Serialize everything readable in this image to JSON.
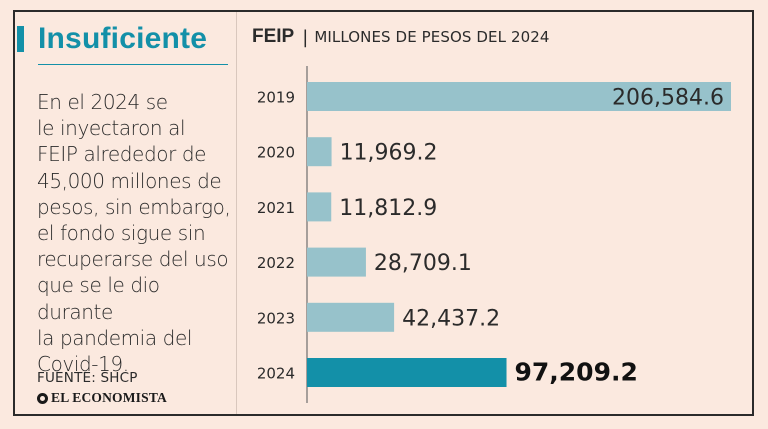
{
  "headline": "Insuficiente",
  "body_lines": [
    "En el 2024 se",
    "le inyectaron al",
    "FEIP alrededor de",
    "45,000 millones de",
    "pesos, sin embargo,",
    "el fondo sigue sin",
    "recuperarse del uso",
    "que se le dio durante",
    "la pandemia del",
    "Covid-19."
  ],
  "source": "FUENTE: SHCP",
  "brand": "EL ECONOMISTA",
  "colors": {
    "accent": "#1390a8",
    "bar": "#97c2cb",
    "text": "#2b2b2b",
    "background": "#fbe9df"
  },
  "chart_data": {
    "type": "bar",
    "orientation": "horizontal",
    "title": "FEIP",
    "subtitle": "MILLONES DE PESOS DEL 2024",
    "categories": [
      "2019",
      "2020",
      "2021",
      "2022",
      "2023",
      "2024"
    ],
    "values": [
      206584.6,
      11969.2,
      11812.9,
      28709.1,
      42437.2,
      97209.2
    ],
    "value_labels": [
      "206,584.6",
      "11,969.2",
      "11,812.9",
      "28,709.1",
      "42,437.2",
      "97,209.2"
    ],
    "highlight_category": "2024",
    "xlim": [
      0,
      206584.6
    ],
    "grid": false,
    "legend": "none"
  }
}
